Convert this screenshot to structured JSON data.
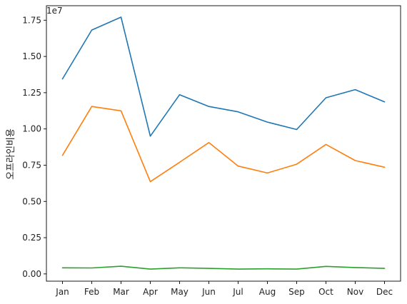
{
  "chart_data": {
    "type": "line",
    "title": "",
    "xlabel": "",
    "ylabel": "오프라인비용",
    "y_offset_label": "1e7",
    "categories": [
      "Jan",
      "Feb",
      "Mar",
      "Apr",
      "May",
      "Jun",
      "Jul",
      "Aug",
      "Sep",
      "Oct",
      "Nov",
      "Dec"
    ],
    "ylim": [
      -0.05,
      1.85
    ],
    "yticks": [
      0.0,
      0.25,
      0.5,
      0.75,
      1.0,
      1.25,
      1.5,
      1.75
    ],
    "ytick_labels": [
      "0.00",
      "0.25",
      "0.50",
      "0.75",
      "1.00",
      "1.25",
      "1.50",
      "1.75"
    ],
    "grid": false,
    "series": [
      {
        "color": "#1f77b4",
        "values": [
          1.345,
          1.682,
          1.771,
          0.95,
          1.236,
          1.155,
          1.118,
          1.047,
          0.996,
          1.215,
          1.271,
          1.187
        ]
      },
      {
        "color": "#ff7f0e",
        "values": [
          0.818,
          1.155,
          1.125,
          0.636,
          0.77,
          0.906,
          0.744,
          0.696,
          0.757,
          0.893,
          0.782,
          0.736
        ]
      },
      {
        "color": "#2ca02c",
        "values": [
          0.042,
          0.041,
          0.053,
          0.033,
          0.042,
          0.038,
          0.033,
          0.035,
          0.033,
          0.052,
          0.044,
          0.038
        ]
      }
    ]
  }
}
